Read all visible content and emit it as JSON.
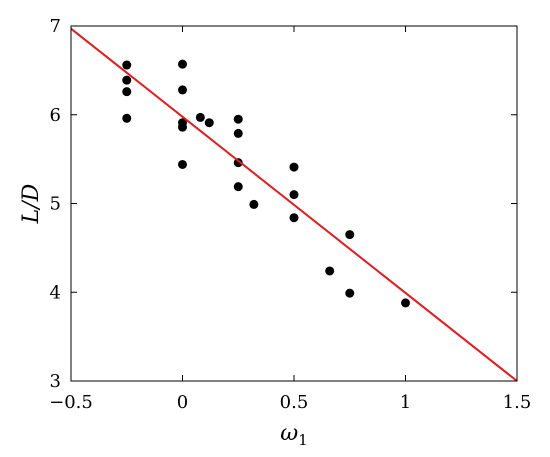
{
  "chart_data": {
    "type": "scatter",
    "xlabel": "ω",
    "xlabel_subscript": "1",
    "ylabel": "L/D",
    "xlim": [
      -0.5,
      1.5
    ],
    "ylim": [
      3,
      7
    ],
    "xticks": [
      -0.5,
      0,
      0.5,
      1,
      1.5
    ],
    "xtick_labels": [
      "−0.5",
      "0",
      "0.5",
      "1",
      "1.5"
    ],
    "yticks": [
      3,
      4,
      5,
      6,
      7
    ],
    "ytick_labels": [
      "3",
      "4",
      "5",
      "6",
      "7"
    ],
    "grid": false,
    "points": [
      {
        "x": -0.25,
        "y": 6.56
      },
      {
        "x": -0.25,
        "y": 6.39
      },
      {
        "x": -0.25,
        "y": 6.26
      },
      {
        "x": -0.25,
        "y": 5.96
      },
      {
        "x": 0.0,
        "y": 6.57
      },
      {
        "x": 0.0,
        "y": 6.28
      },
      {
        "x": 0.0,
        "y": 5.91
      },
      {
        "x": 0.0,
        "y": 5.86
      },
      {
        "x": 0.0,
        "y": 5.44
      },
      {
        "x": 0.08,
        "y": 5.97
      },
      {
        "x": 0.12,
        "y": 5.91
      },
      {
        "x": 0.25,
        "y": 5.95
      },
      {
        "x": 0.25,
        "y": 5.79
      },
      {
        "x": 0.25,
        "y": 5.46
      },
      {
        "x": 0.25,
        "y": 5.19
      },
      {
        "x": 0.32,
        "y": 4.99
      },
      {
        "x": 0.5,
        "y": 5.41
      },
      {
        "x": 0.5,
        "y": 5.1
      },
      {
        "x": 0.5,
        "y": 4.84
      },
      {
        "x": 0.66,
        "y": 4.24
      },
      {
        "x": 0.75,
        "y": 4.65
      },
      {
        "x": 0.75,
        "y": 3.99
      },
      {
        "x": 1.0,
        "y": 3.88
      }
    ],
    "fit_line": {
      "x": [
        -0.5,
        1.5
      ],
      "y": [
        6.97,
        3.0
      ],
      "color": "#e41a1c"
    },
    "marker_color": "#000000"
  }
}
